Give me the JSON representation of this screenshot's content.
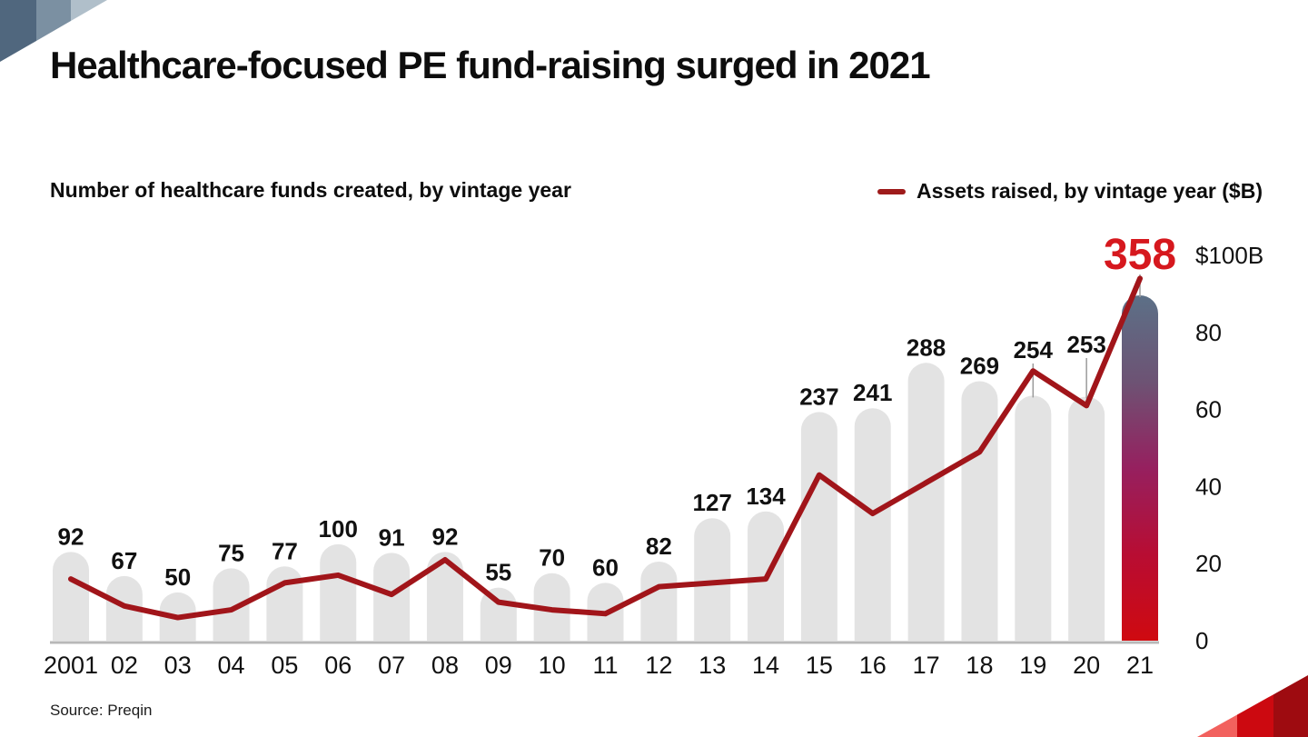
{
  "title": "Healthcare-focused PE fund-raising surged in 2021",
  "chart_header": {
    "subtitle": "Number of healthcare funds created, by vintage year",
    "legend_label": "Assets raised, by vintage year ($B)"
  },
  "footer": {
    "source": "Source: Preqin"
  },
  "colors": {
    "bar_fill": "#e3e3e3",
    "line": "#a1151a",
    "legend_dash": "#9e1b1b",
    "highlight_value_text": "#d6181e",
    "axis_line": "#b8b8b8",
    "leader_line": "#9b9b9b",
    "text": "#111111",
    "highlight_gradient": [
      [
        "0%",
        "#5c7087"
      ],
      [
        "25%",
        "#6d5374"
      ],
      [
        "50%",
        "#96205f"
      ],
      [
        "75%",
        "#b80d33"
      ],
      [
        "100%",
        "#cf0a10"
      ]
    ],
    "corner_top_left": [
      "#50677e",
      "#7b90a2",
      "#b0bfca"
    ],
    "corner_bottom_right": [
      "#f2615e",
      "#cc0910",
      "#9e0b10"
    ]
  },
  "chart_data": {
    "type": "bar",
    "combo_with_line": true,
    "title": "Healthcare-focused PE fund-raising surged in 2021",
    "categories": [
      "2001",
      "02",
      "03",
      "04",
      "05",
      "06",
      "07",
      "08",
      "09",
      "10",
      "11",
      "12",
      "13",
      "14",
      "15",
      "16",
      "17",
      "18",
      "19",
      "20",
      "21"
    ],
    "series": [
      {
        "name": "Number of healthcare funds created, by vintage year",
        "type": "bar",
        "values": [
          92,
          67,
          50,
          75,
          77,
          100,
          91,
          92,
          55,
          70,
          60,
          82,
          127,
          134,
          237,
          241,
          288,
          269,
          254,
          253,
          358
        ],
        "highlight_last_bar": true
      },
      {
        "name": "Assets raised, by vintage year ($B)",
        "type": "line",
        "unit": "$B (estimated from line position)",
        "values": [
          16,
          9,
          6,
          8,
          15,
          17,
          12,
          21,
          10,
          8,
          7,
          14,
          15,
          16,
          43,
          33,
          41,
          49,
          70,
          61,
          94
        ]
      }
    ],
    "right_axis": {
      "range": [
        0,
        100
      ],
      "ticks": [
        {
          "value": 0,
          "label": "0"
        },
        {
          "value": 20,
          "label": "20"
        },
        {
          "value": 40,
          "label": "40"
        },
        {
          "value": 60,
          "label": "60"
        },
        {
          "value": 80,
          "label": "80"
        },
        {
          "value": 100,
          "label": "$100B"
        }
      ]
    },
    "bar_labels_shown": true,
    "highlight_label": "358",
    "legend_position": "top-right",
    "grid": false
  }
}
